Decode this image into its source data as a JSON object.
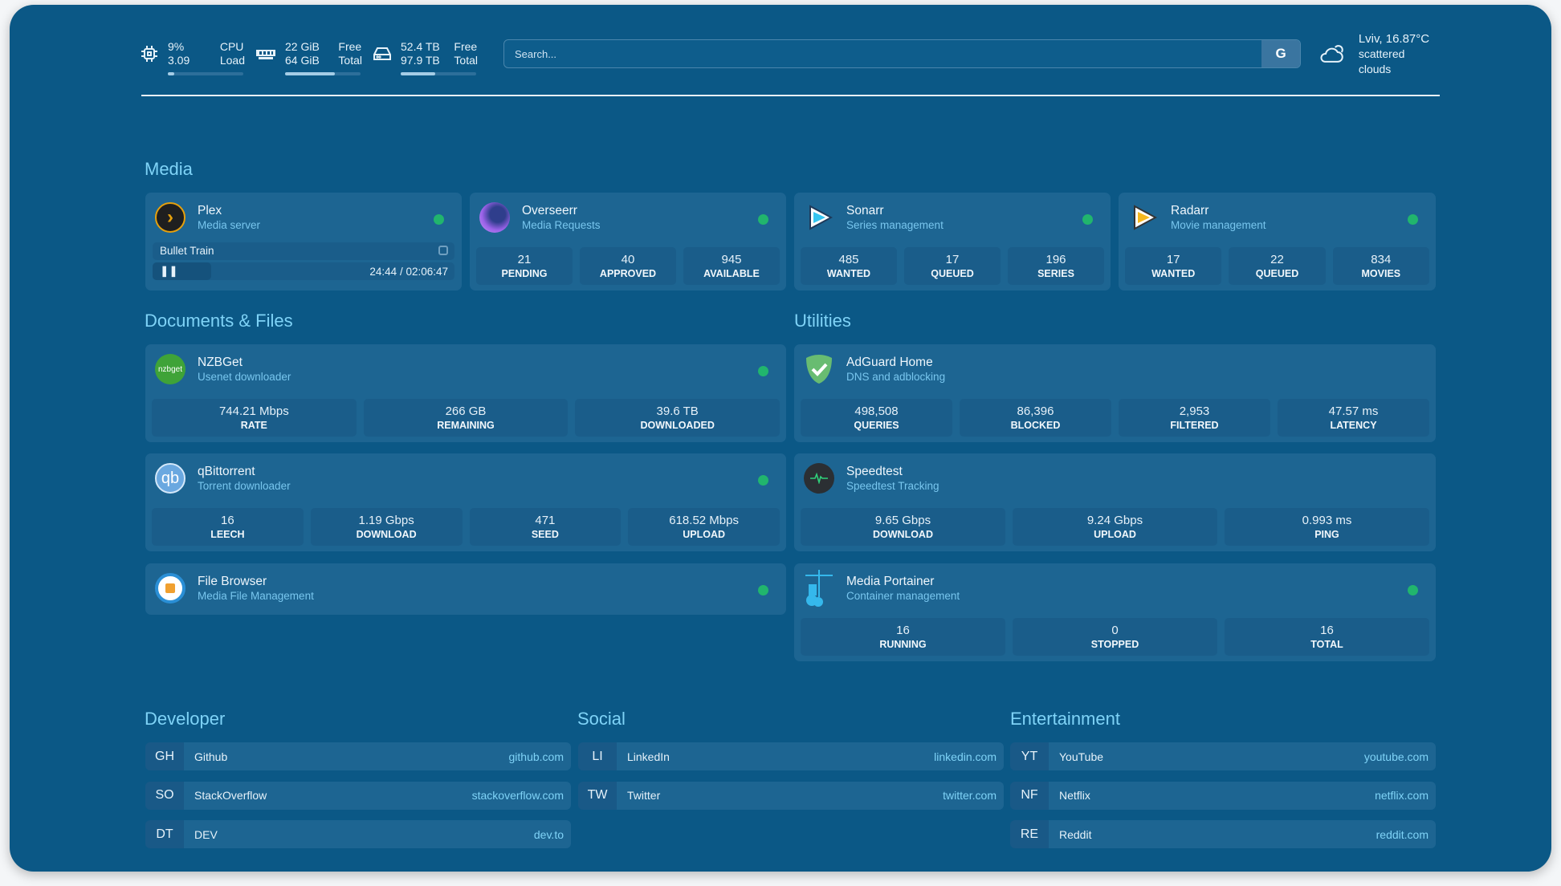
{
  "topbar": {
    "cpu": {
      "value1": "9%",
      "value2": "3.09",
      "label1": "CPU",
      "label2": "Load",
      "fill": 0.09,
      "icon": "cpu-icon"
    },
    "memory": {
      "value1": "22 GiB",
      "value2": "64 GiB",
      "label1": "Free",
      "label2": "Total",
      "fill": 0.66,
      "icon": "memory-icon"
    },
    "disk": {
      "value1": "52.4 TB",
      "value2": "97.9 TB",
      "label1": "Free",
      "label2": "Total",
      "fill": 0.46,
      "icon": "disk-icon"
    },
    "search": {
      "placeholder": "Search...",
      "button": "G"
    },
    "weather": {
      "location_temp": "Lviv, 16.87°C",
      "condition": "scattered clouds",
      "icon": "cloud-icon"
    }
  },
  "sections": {
    "media": "Media",
    "documents": "Documents & Files",
    "utilities": "Utilities",
    "developer": "Developer",
    "social": "Social",
    "entertainment": "Entertainment"
  },
  "media": [
    {
      "name": "Plex",
      "desc": "Media server",
      "now_playing": {
        "title": "Bullet Train",
        "time": "24:44 / 02:06:47",
        "progress": 0.195
      }
    },
    {
      "name": "Overseerr",
      "desc": "Media Requests",
      "stats": [
        {
          "v": "21",
          "l": "PENDING"
        },
        {
          "v": "40",
          "l": "APPROVED"
        },
        {
          "v": "945",
          "l": "AVAILABLE"
        }
      ]
    },
    {
      "name": "Sonarr",
      "desc": "Series management",
      "stats": [
        {
          "v": "485",
          "l": "WANTED"
        },
        {
          "v": "17",
          "l": "QUEUED"
        },
        {
          "v": "196",
          "l": "SERIES"
        }
      ]
    },
    {
      "name": "Radarr",
      "desc": "Movie management",
      "stats": [
        {
          "v": "17",
          "l": "WANTED"
        },
        {
          "v": "22",
          "l": "QUEUED"
        },
        {
          "v": "834",
          "l": "MOVIES"
        }
      ]
    }
  ],
  "documents": [
    {
      "name": "NZBGet",
      "desc": "Usenet downloader",
      "logo": "nzbget",
      "stats": [
        {
          "v": "744.21 Mbps",
          "l": "RATE"
        },
        {
          "v": "266 GB",
          "l": "REMAINING"
        },
        {
          "v": "39.6 TB",
          "l": "DOWNLOADED"
        }
      ]
    },
    {
      "name": "qBittorrent",
      "desc": "Torrent downloader",
      "logo": "qb",
      "stats": [
        {
          "v": "16",
          "l": "LEECH"
        },
        {
          "v": "1.19 Gbps",
          "l": "DOWNLOAD"
        },
        {
          "v": "471",
          "l": "SEED"
        },
        {
          "v": "618.52 Mbps",
          "l": "UPLOAD"
        }
      ]
    },
    {
      "name": "File Browser",
      "desc": "Media File Management"
    }
  ],
  "utilities": [
    {
      "name": "AdGuard Home",
      "desc": "DNS and adblocking",
      "stats": [
        {
          "v": "498,508",
          "l": "QUERIES"
        },
        {
          "v": "86,396",
          "l": "BLOCKED"
        },
        {
          "v": "2,953",
          "l": "FILTERED"
        },
        {
          "v": "47.57 ms",
          "l": "LATENCY"
        }
      ]
    },
    {
      "name": "Speedtest",
      "desc": "Speedtest Tracking",
      "stats": [
        {
          "v": "9.65 Gbps",
          "l": "DOWNLOAD"
        },
        {
          "v": "9.24 Gbps",
          "l": "UPLOAD"
        },
        {
          "v": "0.993 ms",
          "l": "PING"
        }
      ]
    },
    {
      "name": "Media Portainer",
      "desc": "Container management",
      "stats": [
        {
          "v": "16",
          "l": "RUNNING"
        },
        {
          "v": "0",
          "l": "STOPPED"
        },
        {
          "v": "16",
          "l": "TOTAL"
        }
      ]
    }
  ],
  "bookmarks": {
    "developer": [
      {
        "abbr": "GH",
        "name": "Github",
        "url": "github.com"
      },
      {
        "abbr": "SO",
        "name": "StackOverflow",
        "url": "stackoverflow.com"
      },
      {
        "abbr": "DT",
        "name": "DEV",
        "url": "dev.to"
      }
    ],
    "social": [
      {
        "abbr": "LI",
        "name": "LinkedIn",
        "url": "linkedin.com"
      },
      {
        "abbr": "TW",
        "name": "Twitter",
        "url": "twitter.com"
      }
    ],
    "entertainment": [
      {
        "abbr": "YT",
        "name": "YouTube",
        "url": "youtube.com"
      },
      {
        "abbr": "NF",
        "name": "Netflix",
        "url": "netflix.com"
      },
      {
        "abbr": "RE",
        "name": "Reddit",
        "url": "reddit.com"
      }
    ]
  },
  "colors": {
    "background": "#0b5886",
    "card": "#1d6592",
    "accent": "#7fd3f7",
    "status_online": "#21b56d"
  }
}
